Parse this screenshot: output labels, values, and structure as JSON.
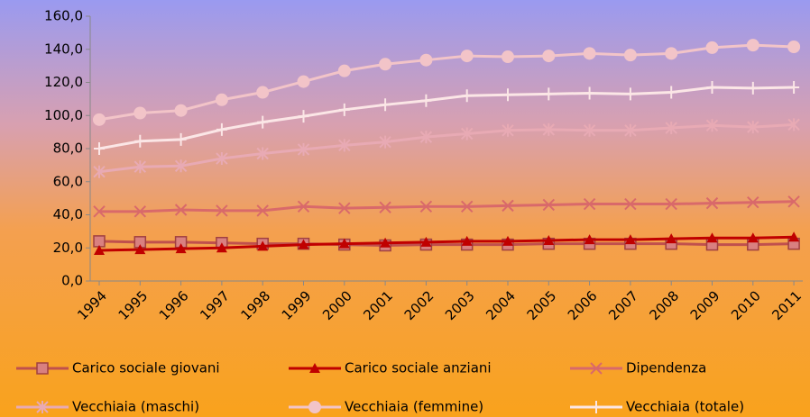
{
  "chart_data": {
    "type": "line",
    "categories": [
      "1994",
      "1995",
      "1996",
      "1997",
      "1998",
      "1999",
      "2000",
      "2001",
      "2002",
      "2003",
      "2004",
      "2005",
      "2006",
      "2007",
      "2008",
      "2009",
      "2010",
      "2011"
    ],
    "series": [
      {
        "name": "Carico sociale giovani",
        "color": "#c0504d",
        "marker": "square",
        "values": [
          24,
          23.5,
          23.5,
          23,
          22.5,
          22.5,
          22,
          21.5,
          22,
          22,
          22,
          22.5,
          22.5,
          22.5,
          22.5,
          22,
          22,
          22.5
        ]
      },
      {
        "name": "Carico sociale anziani",
        "color": "#c00000",
        "marker": "triangle",
        "values": [
          18.5,
          19,
          19.5,
          20,
          21,
          22,
          22.5,
          23,
          23.5,
          24,
          24,
          24.5,
          25,
          25,
          25.5,
          26,
          26,
          26.5
        ]
      },
      {
        "name": "Dipendenza",
        "color": "#d9696a",
        "marker": "x",
        "values": [
          42,
          42,
          43,
          42.5,
          42.5,
          45,
          44,
          44.5,
          45,
          45,
          45.5,
          46,
          46.5,
          46.5,
          46.5,
          47,
          47.5,
          48
        ]
      },
      {
        "name": "Vecchiaia (maschi)",
        "color": "#e8aab4",
        "marker": "star",
        "values": [
          66,
          69,
          69.5,
          74,
          77,
          79.5,
          82,
          84,
          87,
          89,
          91,
          91.5,
          91,
          91,
          92.5,
          94,
          93,
          94.5
        ]
      },
      {
        "name": "Vecchiaia (femmine)",
        "color": "#f2c4c8",
        "marker": "circle",
        "values": [
          97.5,
          101.5,
          103,
          109.5,
          114,
          120.5,
          127,
          131,
          133.5,
          136,
          135.5,
          136,
          137.5,
          136.5,
          137.5,
          141,
          142.5,
          141.5
        ]
      },
      {
        "name": "Vecchiaia (totale)",
        "color": "#fbe6e6",
        "marker": "plus",
        "values": [
          80,
          84.5,
          85.5,
          91.5,
          96,
          99.5,
          103.5,
          106.5,
          109,
          112,
          112.5,
          113,
          113.5,
          113,
          114,
          117,
          116.5,
          117
        ]
      }
    ],
    "ylim": [
      0,
      160
    ],
    "yticks": [
      {
        "value": 0,
        "label": "0,0"
      },
      {
        "value": 20,
        "label": "20,0"
      },
      {
        "value": 40,
        "label": "40,0"
      },
      {
        "value": 60,
        "label": "60,0"
      },
      {
        "value": 80,
        "label": "80,0"
      },
      {
        "value": 100,
        "label": "100,0"
      },
      {
        "value": 120,
        "label": "120,0"
      },
      {
        "value": 140,
        "label": "140,0"
      },
      {
        "value": 160,
        "label": "160,0"
      }
    ],
    "grid": false,
    "legend": "bottom"
  }
}
